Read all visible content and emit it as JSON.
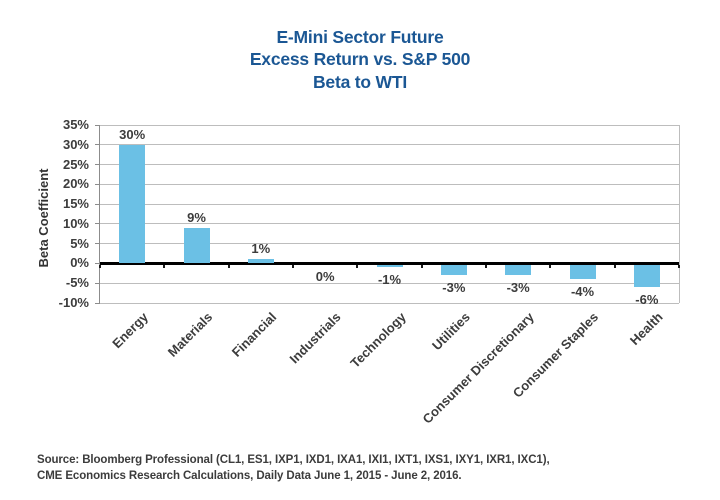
{
  "title": {
    "lines": [
      "E-Mini Sector Future",
      "Excess Return vs. S&P 500",
      "Beta to WTI"
    ],
    "color": "#1B5794"
  },
  "source": {
    "line1": "Source: Bloomberg Professional (CL1, ES1, IXP1, IXD1, IXA1, IXI1, IXT1, IXS1, IXY1, IXR1, IXC1),",
    "line2": "CME Economics Research Calculations, Daily Data June 1, 2015 - June 2, 2016."
  },
  "chart_data": {
    "type": "bar",
    "title": "E-Mini Sector Future Excess Return vs. S&P 500 Beta to WTI",
    "xlabel": "",
    "ylabel": "Beta Coefficient",
    "categories": [
      "Energy",
      "Materials",
      "Financial",
      "Industrials",
      "Technology",
      "Utilities",
      "Consumer Discretionary",
      "Consumer Staples",
      "Health"
    ],
    "values": [
      30,
      9,
      1,
      0,
      -1,
      -3,
      -3,
      -4,
      -6
    ],
    "data_labels": [
      "30%",
      "9%",
      "1%",
      "0%",
      "-1%",
      "-3%",
      "-3%",
      "-4%",
      "-6%"
    ],
    "unit": "percent",
    "ylim": [
      -10,
      35
    ],
    "ytick_step": 5,
    "ytick_labels": [
      "35%",
      "30%",
      "25%",
      "20%",
      "15%",
      "10%",
      "5%",
      "0%",
      "-5%",
      "-10%"
    ],
    "grid": true,
    "legend": false,
    "colors": {
      "bar": "#6BC0E5",
      "gridline": "#BDBDBD",
      "axis_line": "#8C8C8C",
      "zero_line": "#000000",
      "tick": "#1a1a1a",
      "text": "#3c3c3c"
    }
  }
}
